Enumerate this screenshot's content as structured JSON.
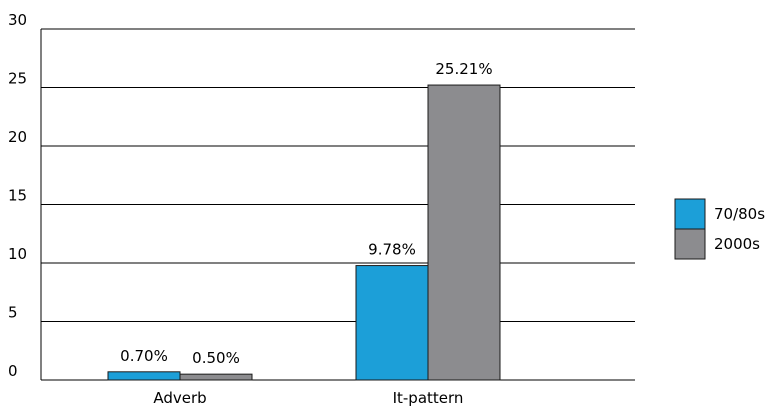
{
  "chart_data": {
    "type": "bar",
    "title": "",
    "xlabel": "",
    "ylabel": "",
    "categories": [
      "Adverb",
      "It-pattern"
    ],
    "series": [
      {
        "name": "70/80s",
        "values": [
          0.7,
          9.78
        ],
        "labels": [
          "0.70%",
          "9.78%"
        ],
        "color": "#1c9fd8"
      },
      {
        "name": "2000s",
        "values": [
          0.5,
          25.21
        ],
        "labels": [
          "0.50%",
          "25.21%"
        ],
        "color": "#8c8c8f"
      }
    ],
    "ylim": [
      0,
      30
    ],
    "yticks": [
      "0",
      "5",
      "10",
      "15",
      "20",
      "25",
      "30"
    ],
    "grid": true,
    "legend": "right"
  }
}
